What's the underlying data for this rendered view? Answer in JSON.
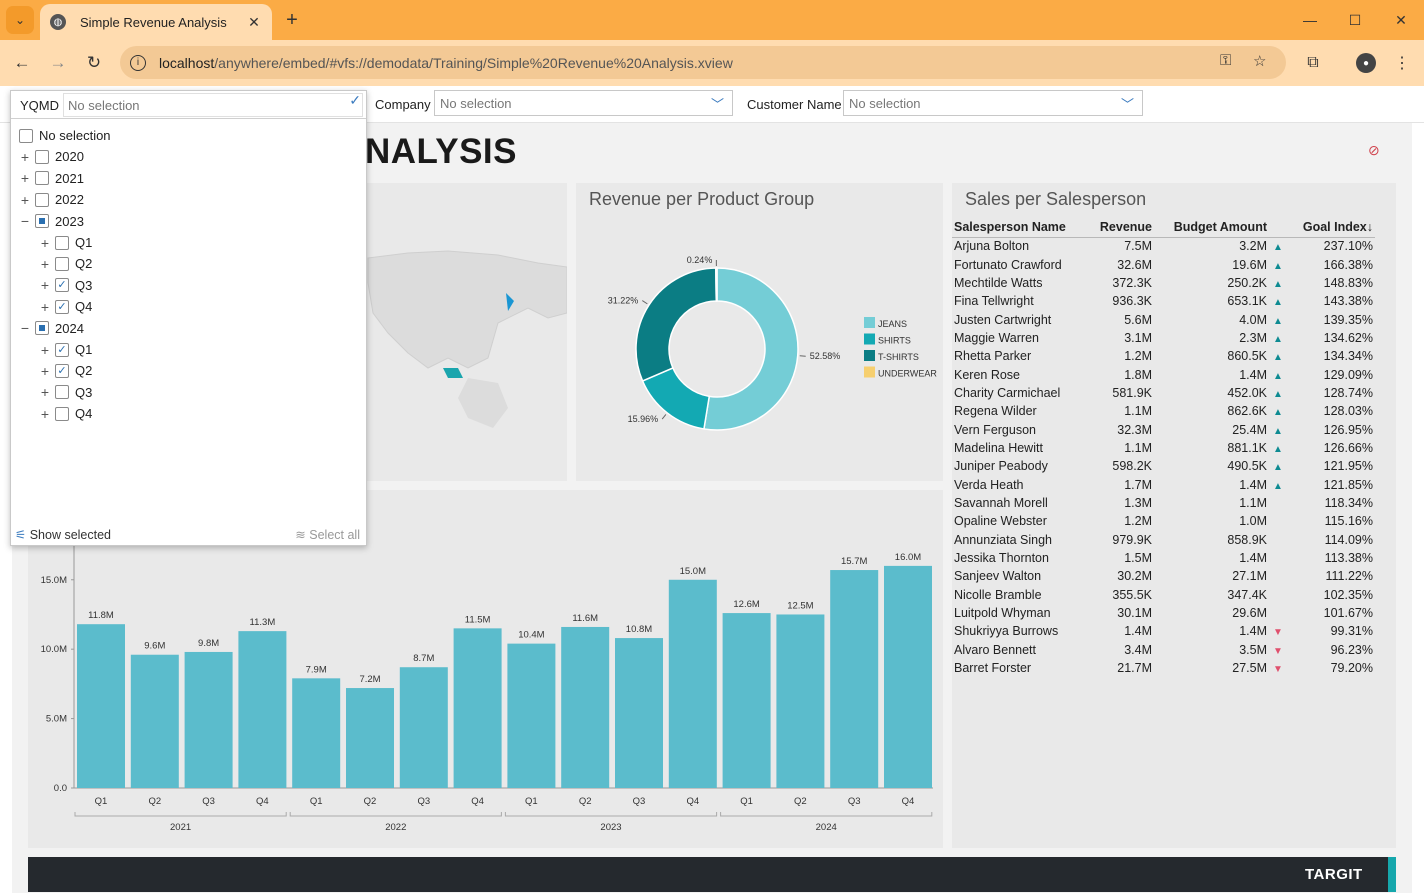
{
  "browser": {
    "tab_title": "Simple Revenue Analysis",
    "url_host": "localhost",
    "url_path": "/anywhere/embed/#vfs://demodata/Training/Simple%20Revenue%20Analysis.xview"
  },
  "filters": {
    "yqmd_label": "YQMD",
    "yqmd_value": "No selection",
    "company_label": "Company",
    "company_value": "No selection",
    "customer_label": "Customer Name",
    "customer_value": "No selection"
  },
  "dropdown": {
    "items": [
      {
        "label": "No selection",
        "level": 0,
        "expander": "",
        "state": "none"
      },
      {
        "label": "2020",
        "level": 0,
        "expander": "+",
        "state": "none"
      },
      {
        "label": "2021",
        "level": 0,
        "expander": "+",
        "state": "none"
      },
      {
        "label": "2022",
        "level": 0,
        "expander": "+",
        "state": "none"
      },
      {
        "label": "2023",
        "level": 0,
        "expander": "−",
        "state": "partial"
      },
      {
        "label": "Q1",
        "level": 1,
        "expander": "+",
        "state": "none"
      },
      {
        "label": "Q2",
        "level": 1,
        "expander": "+",
        "state": "none"
      },
      {
        "label": "Q3",
        "level": 1,
        "expander": "+",
        "state": "checked"
      },
      {
        "label": "Q4",
        "level": 1,
        "expander": "+",
        "state": "checked"
      },
      {
        "label": "2024",
        "level": 0,
        "expander": "−",
        "state": "partial"
      },
      {
        "label": "Q1",
        "level": 1,
        "expander": "+",
        "state": "checked"
      },
      {
        "label": "Q2",
        "level": 1,
        "expander": "+",
        "state": "checked"
      },
      {
        "label": "Q3",
        "level": 1,
        "expander": "+",
        "state": "none"
      },
      {
        "label": "Q4",
        "level": 1,
        "expander": "+",
        "state": "none"
      }
    ],
    "show_selected": "Show selected",
    "select_all": "Select all"
  },
  "page": {
    "title_visible": "NALYSIS",
    "footer_brand": "TARGIT"
  },
  "donut": {
    "title": "Revenue per Product Group",
    "legend": [
      "JEANS",
      "SHIRTS",
      "T-SHIRTS",
      "UNDERWEAR"
    ],
    "labels": [
      "52.58%",
      "15.96%",
      "31.22%",
      "0.24%"
    ]
  },
  "sales_table": {
    "title": "Sales per Salesperson",
    "headers": [
      "Salesperson Name",
      "Revenue",
      "Budget Amount",
      "Goal Index"
    ],
    "rows": [
      [
        "Arjuna Bolton",
        "7.5M",
        "3.2M",
        "up",
        "237.10%"
      ],
      [
        "Fortunato Crawford",
        "32.6M",
        "19.6M",
        "up",
        "166.38%"
      ],
      [
        "Mechtilde Watts",
        "372.3K",
        "250.2K",
        "up",
        "148.83%"
      ],
      [
        "Fina Tellwright",
        "936.3K",
        "653.1K",
        "up",
        "143.38%"
      ],
      [
        "Justen Cartwright",
        "5.6M",
        "4.0M",
        "up",
        "139.35%"
      ],
      [
        "Maggie Warren",
        "3.1M",
        "2.3M",
        "up",
        "134.62%"
      ],
      [
        "Rhetta Parker",
        "1.2M",
        "860.5K",
        "up",
        "134.34%"
      ],
      [
        "Keren Rose",
        "1.8M",
        "1.4M",
        "up",
        "129.09%"
      ],
      [
        "Charity Carmichael",
        "581.9K",
        "452.0K",
        "up",
        "128.74%"
      ],
      [
        "Regena Wilder",
        "1.1M",
        "862.6K",
        "up",
        "128.03%"
      ],
      [
        "Vern Ferguson",
        "32.3M",
        "25.4M",
        "up",
        "126.95%"
      ],
      [
        "Madelina Hewitt",
        "1.1M",
        "881.1K",
        "up",
        "126.66%"
      ],
      [
        "Juniper Peabody",
        "598.2K",
        "490.5K",
        "up",
        "121.95%"
      ],
      [
        "Verda Heath",
        "1.7M",
        "1.4M",
        "up",
        "121.85%"
      ],
      [
        "Savannah Morell",
        "1.3M",
        "1.1M",
        "",
        "118.34%"
      ],
      [
        "Opaline Webster",
        "1.2M",
        "1.0M",
        "",
        "115.16%"
      ],
      [
        "Annunziata Singh",
        "979.9K",
        "858.9K",
        "",
        "114.09%"
      ],
      [
        "Jessika Thornton",
        "1.5M",
        "1.4M",
        "",
        "113.38%"
      ],
      [
        "Sanjeev Walton",
        "30.2M",
        "27.1M",
        "",
        "111.22%"
      ],
      [
        "Nicolle Bramble",
        "355.5K",
        "347.4K",
        "",
        "102.35%"
      ],
      [
        "Luitpold Whyman",
        "30.1M",
        "29.6M",
        "",
        "101.67%"
      ],
      [
        "Shukriyya Burrows",
        "1.4M",
        "1.4M",
        "down",
        "99.31%"
      ],
      [
        "Alvaro Bennett",
        "3.4M",
        "3.5M",
        "down",
        "96.23%"
      ],
      [
        "Barret Forster",
        "21.7M",
        "27.5M",
        "down",
        "79.20%"
      ]
    ]
  },
  "colors": {
    "bar": "#5bbccc",
    "jeans": "#74cdd6",
    "shirts": "#13a9b3",
    "tshirts": "#0b7d84",
    "underwear": "#f6cf6f",
    "accent_orange": "#fbab45"
  },
  "chart_data": [
    {
      "type": "bar",
      "categories": [
        "Q1",
        "Q2",
        "Q3",
        "Q4",
        "Q1",
        "Q2",
        "Q3",
        "Q4",
        "Q1",
        "Q2",
        "Q3",
        "Q4",
        "Q1",
        "Q2",
        "Q3",
        "Q4"
      ],
      "groups": [
        "2021",
        "2022",
        "2023",
        "2024"
      ],
      "values": [
        11.8,
        9.6,
        9.8,
        11.3,
        7.9,
        7.2,
        8.7,
        11.5,
        10.4,
        11.6,
        10.8,
        15.0,
        12.6,
        12.5,
        15.7,
        16.0
      ],
      "value_labels": [
        "11.8M",
        "9.6M",
        "9.8M",
        "11.3M",
        "7.9M",
        "7.2M",
        "8.7M",
        "11.5M",
        "10.4M",
        "11.6M",
        "10.8M",
        "15.0M",
        "12.6M",
        "12.5M",
        "15.7M",
        "16.0M"
      ],
      "yticks": [
        "0.0",
        "5.0M",
        "10.0M",
        "15.0M"
      ],
      "ylim": [
        0,
        17
      ]
    },
    {
      "type": "pie",
      "title": "Revenue per Product Group",
      "categories": [
        "JEANS",
        "SHIRTS",
        "T-SHIRTS",
        "UNDERWEAR"
      ],
      "values": [
        52.58,
        15.96,
        31.22,
        0.24
      ]
    }
  ]
}
